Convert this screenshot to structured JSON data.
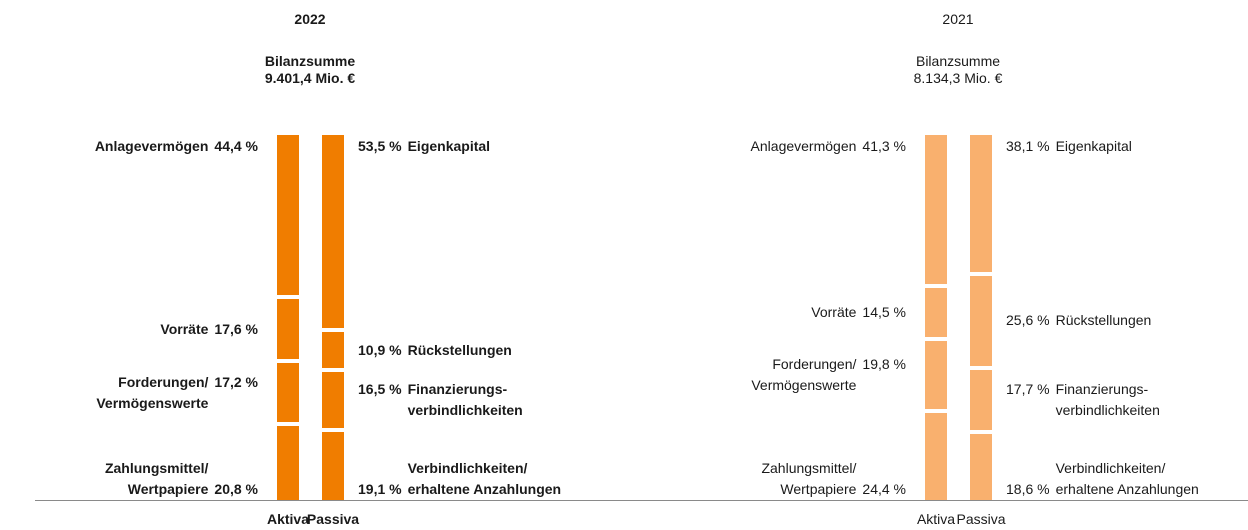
{
  "chart_data": [
    {
      "type": "stacked-bar",
      "title": "2022",
      "subtitle": "Bilanzsumme",
      "total": "9.401,4 Mio. €",
      "color": "#f07d00",
      "ylim": [
        0,
        100
      ],
      "categories": [
        "Aktiva",
        "Passiva"
      ],
      "stacks": [
        {
          "labels": [
            "Anlagevermögen",
            "Vorräte",
            "Forderungen/\nVermögenswerte",
            "Zahlungsmittel/\nWertpapiere"
          ],
          "values": [
            44.4,
            17.6,
            17.2,
            20.8
          ],
          "value_labels": [
            "44,4 %",
            "17,6 %",
            "17,2 %",
            "20,8 %"
          ]
        },
        {
          "labels": [
            "Eigenkapital",
            "Rückstellungen",
            "Finanzierungs-\nverbindlichkeiten",
            "Verbindlichkeiten/\nerhaltene Anzahlungen"
          ],
          "values": [
            53.5,
            10.9,
            16.5,
            19.1
          ],
          "value_labels": [
            "53,5 %",
            "10,9 %",
            "16,5 %",
            "19,1 %"
          ]
        }
      ]
    },
    {
      "type": "stacked-bar",
      "title": "2021",
      "subtitle": "Bilanzsumme",
      "total": "8.134,3 Mio. €",
      "color": "#f9b06e",
      "ylim": [
        0,
        100
      ],
      "categories": [
        "Aktiva",
        "Passiva"
      ],
      "stacks": [
        {
          "labels": [
            "Anlagevermögen",
            "Vorräte",
            "Forderungen/\nVermögenswerte",
            "Zahlungsmittel/\nWertpapiere"
          ],
          "values": [
            41.3,
            14.5,
            19.8,
            24.4
          ],
          "value_labels": [
            "41,3 %",
            "14,5 %",
            "19,8 %",
            "24,4 %"
          ]
        },
        {
          "labels": [
            "Eigenkapital",
            "Rückstellungen",
            "Finanzierungs-\nverbindlichkeiten",
            "Verbindlichkeiten/\nerhaltene Anzahlungen"
          ],
          "values": [
            38.1,
            25.6,
            17.7,
            18.6
          ],
          "value_labels": [
            "38,1 %",
            "25,6 %",
            "17,7 %",
            "18,6 %"
          ]
        }
      ]
    }
  ]
}
